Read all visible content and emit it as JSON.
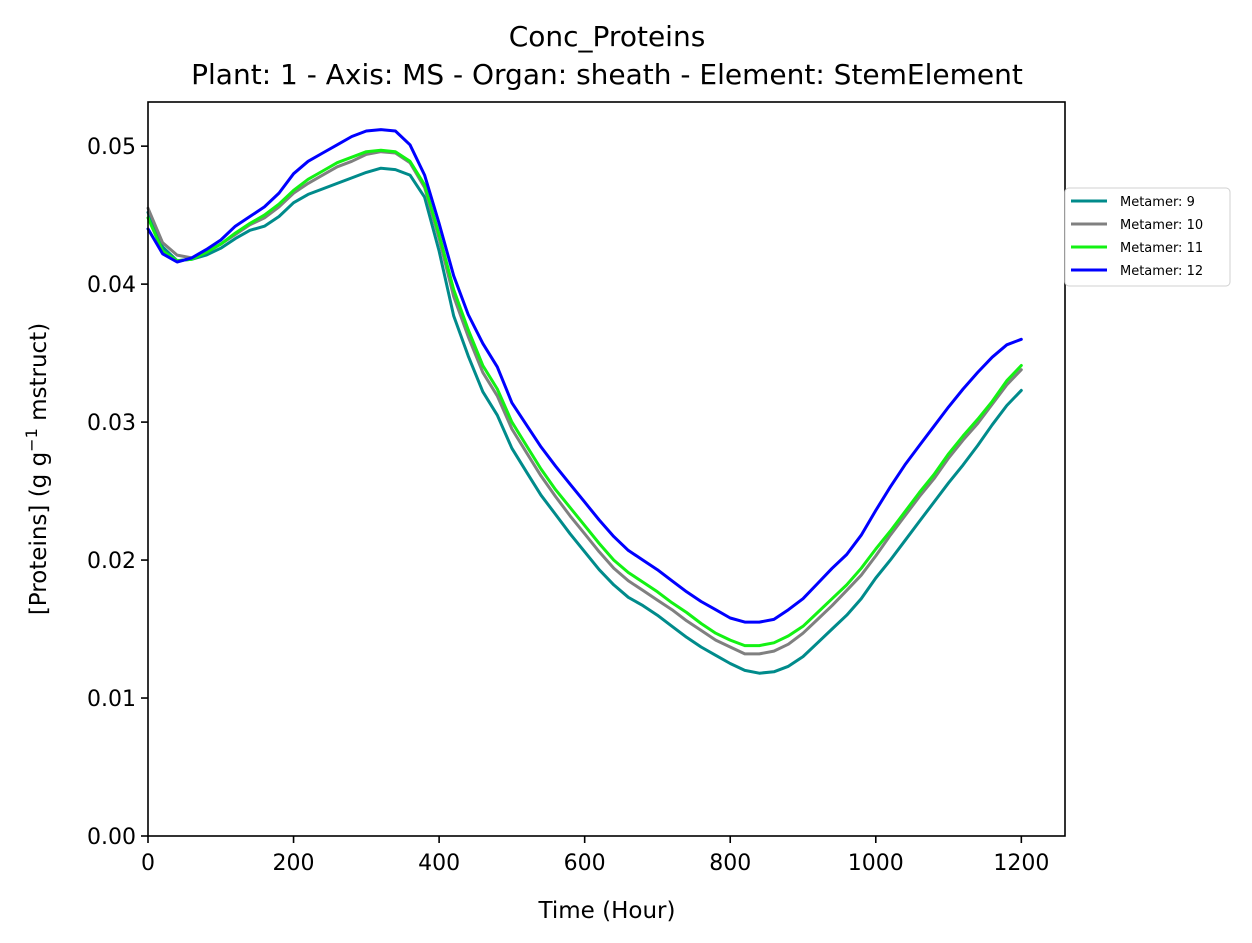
{
  "chart_data": {
    "type": "line",
    "title": "Conc_Proteins",
    "subtitle": "Plant: 1 - Axis: MS - Organ: sheath - Element: StemElement",
    "xlabel": "Time (Hour)",
    "ylabel_main": "[Proteins] (g g",
    "ylabel_sup": "−1",
    "ylabel_tail": " mstruct)",
    "xlim": [
      0,
      1260
    ],
    "ylim": [
      0,
      0.0532
    ],
    "x_ticks": [
      0,
      200,
      400,
      600,
      800,
      1000,
      1200
    ],
    "x_tick_labels": [
      "0",
      "200",
      "400",
      "600",
      "800",
      "1000",
      "1200"
    ],
    "y_ticks": [
      0,
      0.01,
      0.02,
      0.03,
      0.04,
      0.05
    ],
    "y_tick_labels": [
      "0.00",
      "0.01",
      "0.02",
      "0.03",
      "0.04",
      "0.05"
    ],
    "grid": false,
    "legend_position": "right, outside plot",
    "x": [
      0,
      20,
      40,
      60,
      80,
      100,
      120,
      140,
      160,
      180,
      200,
      220,
      240,
      260,
      280,
      300,
      320,
      340,
      360,
      380,
      400,
      420,
      440,
      460,
      480,
      500,
      520,
      540,
      560,
      580,
      600,
      620,
      640,
      660,
      680,
      700,
      720,
      740,
      760,
      780,
      800,
      820,
      840,
      860,
      880,
      900,
      920,
      940,
      960,
      980,
      1000,
      1020,
      1040,
      1060,
      1080,
      1100,
      1120,
      1140,
      1160,
      1180,
      1200
    ],
    "series": [
      {
        "name": "Metamer: 9",
        "color": "#008b8b",
        "values": [
          0.0452,
          0.0427,
          0.0417,
          0.0418,
          0.0421,
          0.0426,
          0.0433,
          0.0439,
          0.0442,
          0.0449,
          0.0459,
          0.0465,
          0.0469,
          0.0473,
          0.0477,
          0.0481,
          0.0484,
          0.0483,
          0.0479,
          0.0463,
          0.0424,
          0.0377,
          0.0348,
          0.0322,
          0.0305,
          0.0281,
          0.0264,
          0.0247,
          0.0233,
          0.0219,
          0.0206,
          0.0193,
          0.0182,
          0.0173,
          0.0167,
          0.016,
          0.0152,
          0.0144,
          0.0137,
          0.0131,
          0.0125,
          0.012,
          0.0118,
          0.0119,
          0.0123,
          0.013,
          0.014,
          0.015,
          0.016,
          0.0172,
          0.0187,
          0.02,
          0.0214,
          0.0228,
          0.0242,
          0.0256,
          0.0269,
          0.0283,
          0.0298,
          0.0312,
          0.0323
        ]
      },
      {
        "name": "Metamer: 10",
        "color": "#808080",
        "values": [
          0.0455,
          0.043,
          0.0421,
          0.0419,
          0.0423,
          0.0429,
          0.0436,
          0.0443,
          0.0448,
          0.0456,
          0.0466,
          0.0473,
          0.0479,
          0.0485,
          0.0489,
          0.0494,
          0.0496,
          0.0495,
          0.0488,
          0.047,
          0.0433,
          0.0391,
          0.0362,
          0.0336,
          0.0319,
          0.0295,
          0.0278,
          0.0261,
          0.0246,
          0.0232,
          0.0219,
          0.0206,
          0.0194,
          0.0185,
          0.0178,
          0.0171,
          0.0164,
          0.0156,
          0.0149,
          0.0142,
          0.0137,
          0.0132,
          0.0132,
          0.0134,
          0.0139,
          0.0147,
          0.0157,
          0.0167,
          0.0178,
          0.0189,
          0.0203,
          0.0218,
          0.0232,
          0.0246,
          0.0259,
          0.0274,
          0.0287,
          0.0299,
          0.0313,
          0.0327,
          0.0338
        ]
      },
      {
        "name": "Metamer: 11",
        "color": "#13f213",
        "values": [
          0.0448,
          0.0424,
          0.0417,
          0.0418,
          0.0423,
          0.0429,
          0.0437,
          0.0444,
          0.045,
          0.0458,
          0.0468,
          0.0476,
          0.0482,
          0.0488,
          0.0492,
          0.0496,
          0.0497,
          0.0496,
          0.0489,
          0.0472,
          0.0436,
          0.0396,
          0.0367,
          0.0341,
          0.0324,
          0.03,
          0.0283,
          0.0266,
          0.0251,
          0.0238,
          0.0225,
          0.0212,
          0.02,
          0.0191,
          0.0184,
          0.0177,
          0.0169,
          0.0162,
          0.0154,
          0.0147,
          0.0142,
          0.0138,
          0.0138,
          0.014,
          0.0145,
          0.0152,
          0.0162,
          0.0172,
          0.0182,
          0.0194,
          0.0208,
          0.0221,
          0.0235,
          0.0249,
          0.0262,
          0.0277,
          0.029,
          0.0302,
          0.0315,
          0.033,
          0.0341
        ]
      },
      {
        "name": "Metamer: 12",
        "color": "#0000ff",
        "values": [
          0.044,
          0.0422,
          0.0416,
          0.0419,
          0.0425,
          0.0432,
          0.0442,
          0.0449,
          0.0456,
          0.0466,
          0.048,
          0.0489,
          0.0495,
          0.0501,
          0.0507,
          0.0511,
          0.0512,
          0.0511,
          0.0501,
          0.0479,
          0.0444,
          0.0406,
          0.0378,
          0.0357,
          0.034,
          0.0314,
          0.0298,
          0.0282,
          0.0268,
          0.0255,
          0.0242,
          0.0229,
          0.0217,
          0.0207,
          0.02,
          0.0193,
          0.0185,
          0.0177,
          0.017,
          0.0164,
          0.0158,
          0.0155,
          0.0155,
          0.0157,
          0.0164,
          0.0172,
          0.0183,
          0.0194,
          0.0204,
          0.0218,
          0.0236,
          0.0253,
          0.0269,
          0.0283,
          0.0297,
          0.0311,
          0.0324,
          0.0336,
          0.0347,
          0.0356,
          0.036
        ]
      }
    ]
  }
}
